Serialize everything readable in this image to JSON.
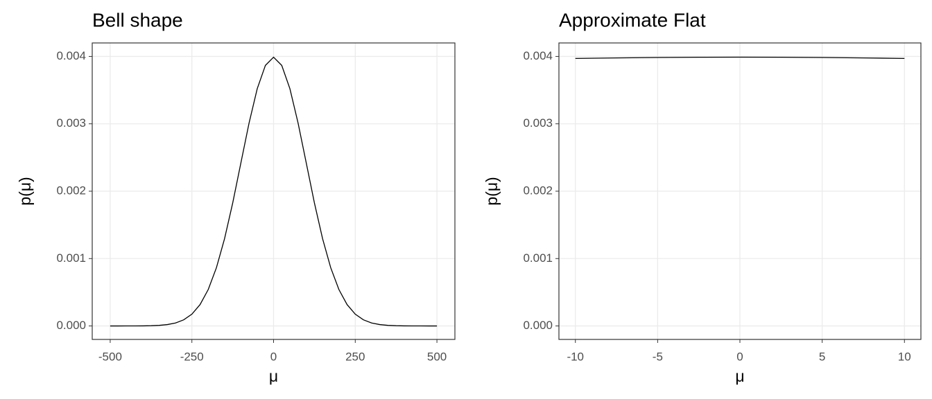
{
  "chart_data": [
    {
      "type": "line",
      "title": "Bell shape",
      "x_label": "μ",
      "y_label": "p(μ)",
      "x": [
        -500,
        -475,
        -450,
        -425,
        -400,
        -375,
        -350,
        -325,
        -300,
        -275,
        -250,
        -225,
        -200,
        -175,
        -150,
        -125,
        -100,
        -75,
        -50,
        -25,
        0,
        25,
        50,
        75,
        100,
        125,
        150,
        175,
        200,
        225,
        250,
        275,
        300,
        325,
        350,
        375,
        400,
        425,
        450,
        475,
        500
      ],
      "series": [
        {
          "color": "#000000",
          "values": [
            0,
            1e-07,
            2e-07,
            5e-07,
            1.3e-06,
            3.5e-06,
            8.7e-06,
            2.03e-05,
            4.43e-05,
            9.09e-05,
            0.000175,
            0.000317,
            0.00054,
            0.000863,
            0.001295,
            0.001826,
            0.00242,
            0.003011,
            0.003521,
            0.003867,
            0.003989,
            0.003867,
            0.003521,
            0.003011,
            0.00242,
            0.001826,
            0.001295,
            0.000863,
            0.00054,
            0.000317,
            0.000175,
            9.09e-05,
            4.43e-05,
            2.03e-05,
            8.7e-06,
            3.5e-06,
            1.3e-06,
            5e-07,
            2e-07,
            1e-07,
            0
          ]
        }
      ],
      "xlim": [
        -555,
        555
      ],
      "xticks": [
        -500,
        -250,
        0,
        250,
        500
      ],
      "ylim": [
        -0.0002,
        0.0042
      ],
      "yticks": [
        {
          "value": 0,
          "label": "0.000"
        },
        {
          "value": 0.001,
          "label": "0.001"
        },
        {
          "value": 0.002,
          "label": "0.002"
        },
        {
          "value": 0.003,
          "label": "0.003"
        },
        {
          "value": 0.004,
          "label": "0.004"
        }
      ],
      "grid": true
    },
    {
      "type": "line",
      "title": "Approximate Flat",
      "x_label": "μ",
      "y_label": "p(μ)",
      "x": [
        -10,
        -7.5,
        -5,
        -2.5,
        0,
        2.5,
        5,
        7.5,
        10
      ],
      "series": [
        {
          "color": "#000000",
          "values": [
            0.00397,
            0.003978,
            0.003984,
            0.003988,
            0.003989,
            0.003988,
            0.003984,
            0.003978,
            0.00397
          ]
        }
      ],
      "xlim": [
        -11,
        11
      ],
      "xticks": [
        -10,
        -5,
        0,
        5,
        10
      ],
      "ylim": [
        -0.0002,
        0.0042
      ],
      "yticks": [
        {
          "value": 0,
          "label": "0.000"
        },
        {
          "value": 0.001,
          "label": "0.001"
        },
        {
          "value": 0.002,
          "label": "0.002"
        },
        {
          "value": 0.003,
          "label": "0.003"
        },
        {
          "value": 0.004,
          "label": "0.004"
        }
      ],
      "grid": true
    }
  ]
}
